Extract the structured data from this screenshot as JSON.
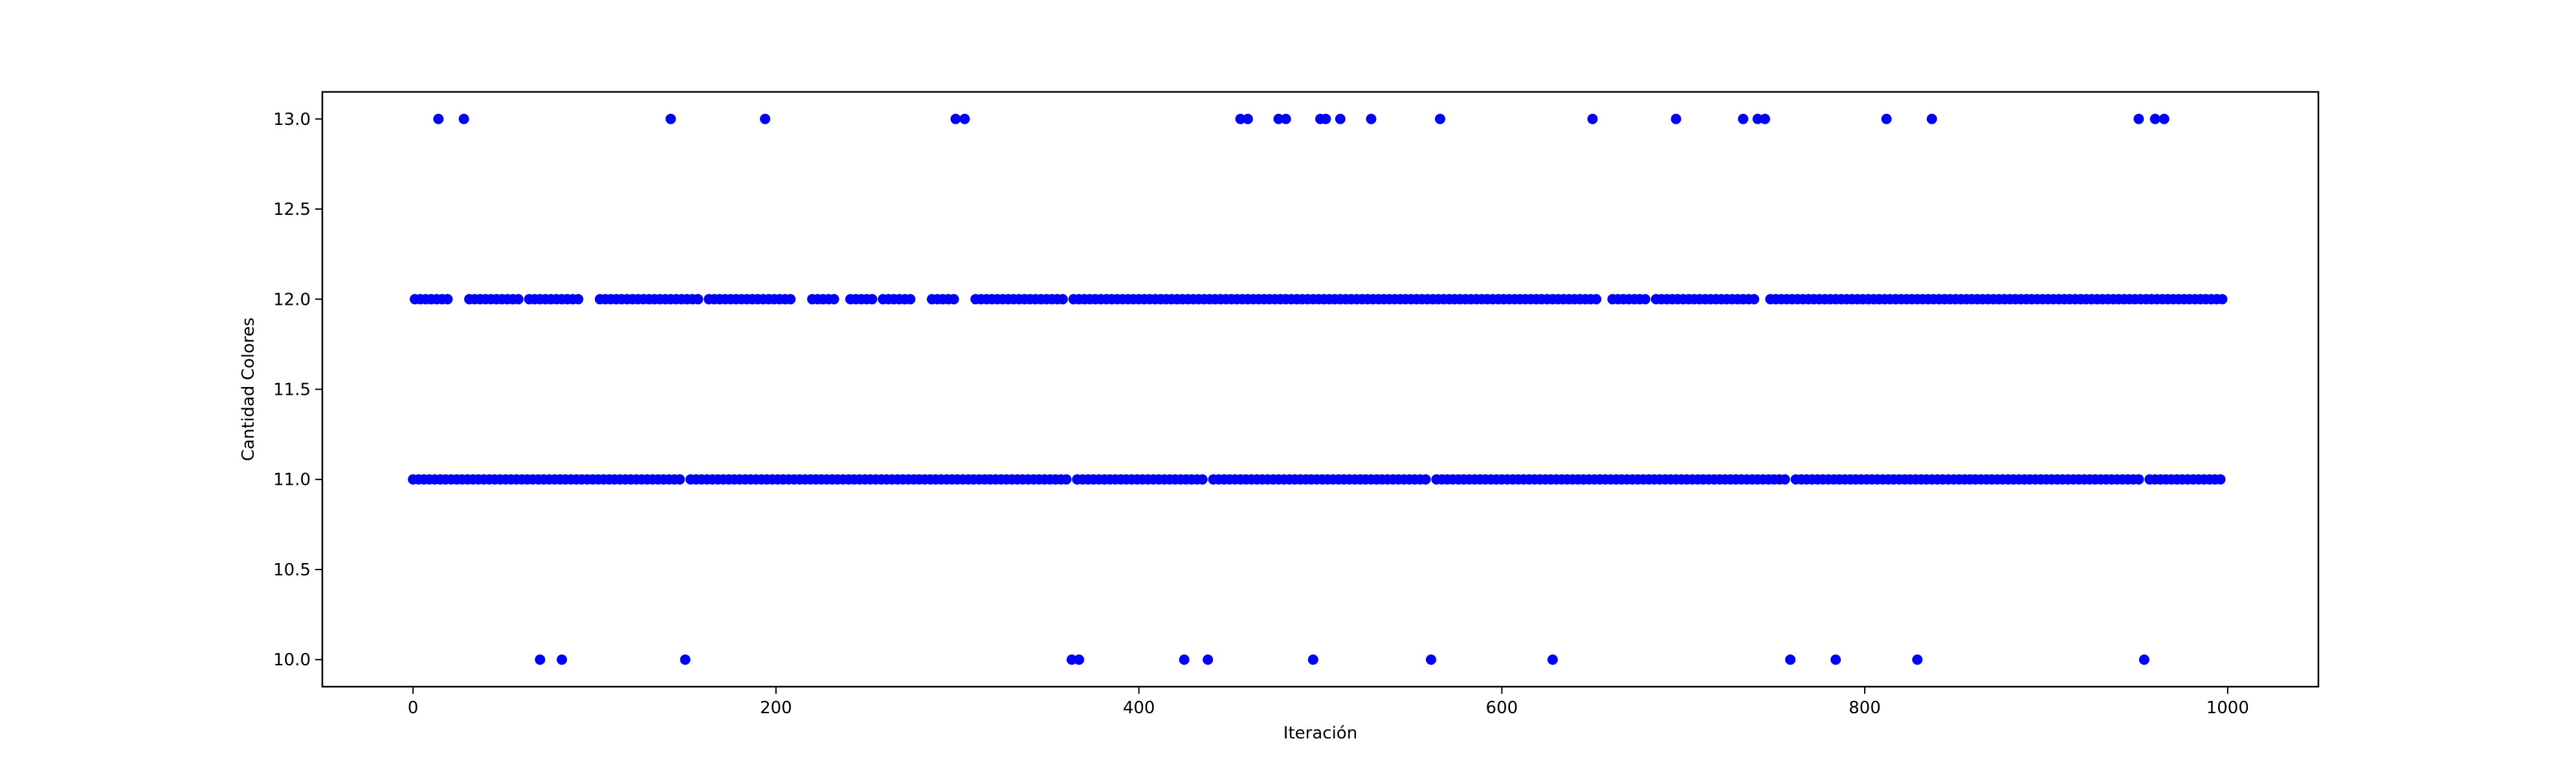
{
  "chart_data": {
    "type": "scatter",
    "title": "",
    "xlabel": "Iteración",
    "ylabel": "Cantidad Colores",
    "xlim": [
      -50,
      1050
    ],
    "ylim": [
      9.85,
      13.15
    ],
    "xticks": [
      0,
      200,
      400,
      600,
      800,
      1000
    ],
    "xtick_labels": [
      "0",
      "200",
      "400",
      "600",
      "800",
      "1000"
    ],
    "yticks": [
      10.0,
      10.5,
      11.0,
      11.5,
      12.0,
      12.5,
      13.0
    ],
    "ytick_labels": [
      "10.0",
      "10.5",
      "11.0",
      "11.5",
      "12.0",
      "12.5",
      "13.0"
    ],
    "grid": false,
    "marker_color": "#0000ff",
    "series": [
      {
        "points_13": [
          14,
          28,
          142,
          194,
          299,
          304,
          456,
          460,
          477,
          481,
          500,
          503,
          511,
          528,
          566,
          650,
          696,
          733,
          741,
          745,
          812,
          837,
          951,
          960,
          965
        ],
        "points_10": [
          70,
          82,
          150,
          363,
          367,
          425,
          438,
          496,
          561,
          628,
          759,
          784,
          829,
          954
        ],
        "ranges_12": [
          [
            0,
            20
          ],
          [
            29,
            60
          ],
          [
            64,
            92
          ],
          [
            103,
            157
          ],
          [
            162,
            210
          ],
          [
            220,
            234
          ],
          [
            240,
            255
          ],
          [
            258,
            276
          ],
          [
            284,
            300
          ],
          [
            310,
            360
          ],
          [
            364,
            652
          ],
          [
            660,
            680
          ],
          [
            684,
            700
          ],
          [
            702,
            740
          ],
          [
            746,
            790
          ],
          [
            793,
            808
          ],
          [
            810,
            998
          ]
        ],
        "ranges_11": [
          [
            0,
            998
          ]
        ],
        "excluded_11": [
          70,
          82,
          150,
          363,
          367,
          425,
          438,
          496,
          561,
          628,
          759,
          784,
          829,
          954
        ]
      }
    ]
  }
}
